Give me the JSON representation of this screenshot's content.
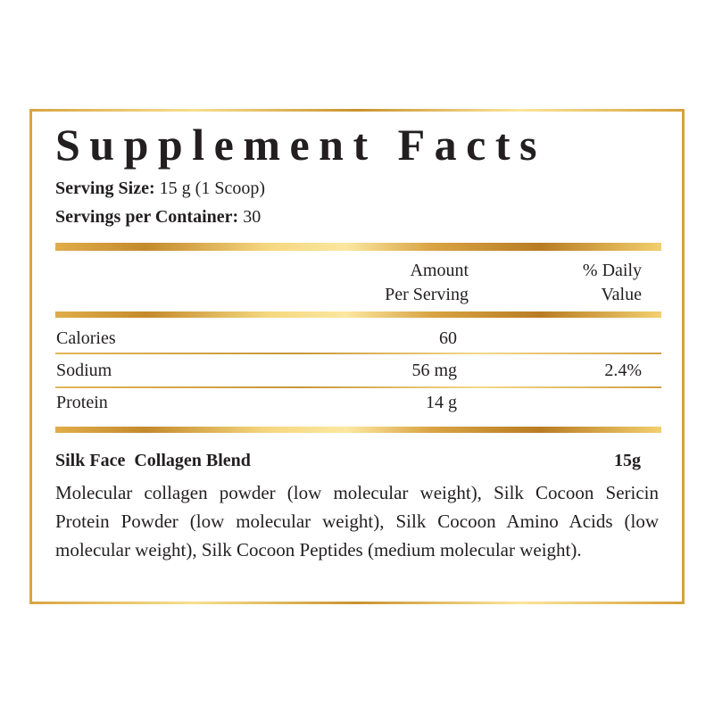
{
  "title": "Supplement Facts",
  "serving_size": {
    "label": "Serving Size:",
    "value": "15 g (1 Scoop)"
  },
  "servings_per_container": {
    "label": "Servings per Container:",
    "value": "30"
  },
  "columns": {
    "amount_line1": "Amount",
    "amount_line2": "Per Serving",
    "dv_line1": "% Daily",
    "dv_line2": "Value"
  },
  "rows": [
    {
      "name": "Calories",
      "amount": "60",
      "dv": ""
    },
    {
      "name": "Sodium",
      "amount": "56 mg",
      "dv": "2.4%"
    },
    {
      "name": "Protein",
      "amount": "14 g",
      "dv": ""
    }
  ],
  "blend": {
    "name": "Silk Face  Collagen Blend",
    "amount": "15g",
    "ingredients": "Molecular collagen powder (low molecular weight), Silk Cocoon Sericin Protein Powder (low molecular weight), Silk Cocoon Amino Acids (low molecular weight), Silk Cocoon Peptides (medium molecular weight)."
  },
  "colors": {
    "gold": "#d9a441",
    "gold_light": "#fbe59a",
    "text": "#231f20"
  }
}
